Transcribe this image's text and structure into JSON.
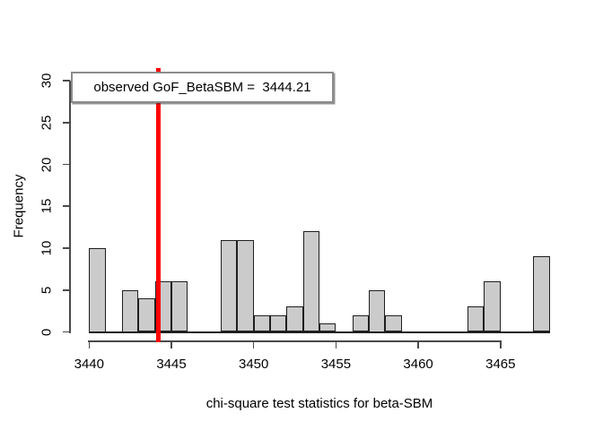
{
  "chart_data": {
    "type": "bar",
    "subtype": "histogram",
    "title": "",
    "xlabel": "chi-square test statistics for beta-SBM",
    "ylabel": "Frequency",
    "bin_start": 3440,
    "bin_width": 1,
    "categories": [
      3440,
      3441,
      3442,
      3443,
      3444,
      3445,
      3446,
      3447,
      3448,
      3449,
      3450,
      3451,
      3452,
      3453,
      3454,
      3455,
      3456,
      3457,
      3458,
      3459,
      3460,
      3461,
      3462,
      3463,
      3464,
      3465,
      3466,
      3467
    ],
    "values": [
      10,
      0,
      5,
      4,
      6,
      6,
      0,
      0,
      11,
      11,
      2,
      2,
      3,
      12,
      1,
      0,
      2,
      5,
      2,
      0,
      0,
      0,
      0,
      3,
      6,
      0,
      0,
      9
    ],
    "xlim": [
      3440,
      3468
    ],
    "ylim": [
      0,
      30
    ],
    "x_ticks": [
      3440,
      3445,
      3450,
      3455,
      3460,
      3465
    ],
    "y_ticks": [
      0,
      5,
      10,
      15,
      20,
      25,
      30
    ],
    "grid": "off",
    "legend_position": "top-left",
    "annotation": "observed GoF_BetaSBM =  3444.21",
    "observed_line": {
      "x": 3444.21,
      "color": "#ff0000"
    },
    "bar_fill": "#cbcbcb",
    "bar_border": "#1f1f1f"
  }
}
